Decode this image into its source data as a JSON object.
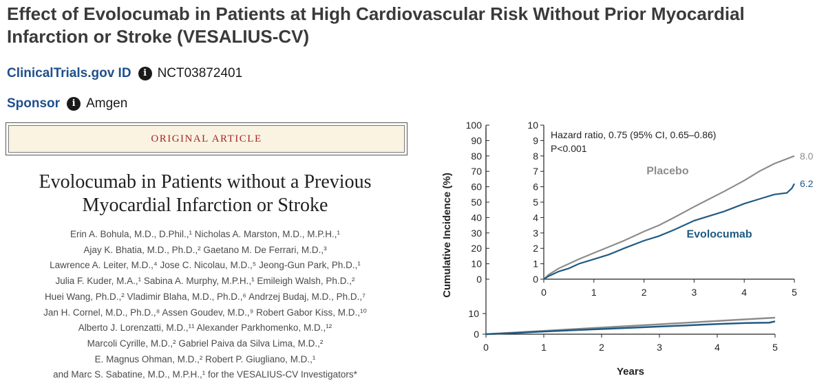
{
  "header": {
    "title": "Effect of Evolocumab in Patients at High Cardiovascular Risk Without Prior Myocardial Infarction or Stroke (VESALIUS-CV)"
  },
  "trial": {
    "label": "ClinicalTrials.gov ID",
    "value": "NCT03872401",
    "icon": "info-icon"
  },
  "sponsor": {
    "label": "Sponsor",
    "value": "Amgen",
    "icon": "info-icon"
  },
  "article": {
    "type_label": "ORIGINAL ARTICLE",
    "title_lines": [
      "Evolocumab in Patients without a Previous",
      "Myocardial Infarction or Stroke"
    ],
    "authors": [
      "Erin A. Bohula, M.D., D.Phil.,¹ Nicholas A. Marston, M.D., M.P.H.,¹",
      "Ajay K. Bhatia, M.D., Ph.D.,² Gaetano M. De Ferrari, M.D.,³",
      "Lawrence A. Leiter, M.D.,⁴ Jose C. Nicolau, M.D.,⁵ Jeong-Gun Park, Ph.D.,¹",
      "Julia F. Kuder, M.A.,¹ Sabina A. Murphy, M.P.H.,¹ Emileigh Walsh, Ph.D.,²",
      "Huei Wang, Ph.D.,² Vladimir Blaha, M.D., Ph.D.,⁶ Andrzej Budaj, M.D., Ph.D.,⁷",
      "Jan H. Cornel, M.D., Ph.D.,⁸ Assen Goudev, M.D.,⁹ Robert Gabor Kiss, M.D.,¹⁰",
      "Alberto J. Lorenzatti, M.D.,¹¹ Alexander Parkhomenko, M.D.,¹²",
      "Marcoli Cyrille, M.D.,² Gabriel Paiva da Silva Lima, M.D.,²",
      "E. Magnus Ohman, M.D.,² Robert P. Giugliano, M.D.,¹",
      "and Marc S. Sabatine, M.D., M.P.H.,¹ for the VESALIUS-CV Investigators*"
    ]
  },
  "chart_data": [
    {
      "type": "line",
      "panel": "full",
      "xlabel": "Years",
      "ylabel": "Cumulative Incidence (%)",
      "xlim": [
        0,
        5
      ],
      "ylim": [
        0,
        100
      ],
      "xticks": [
        "0",
        "1",
        "2",
        "3",
        "4",
        "5"
      ],
      "yticks": [
        "0",
        "10"
      ],
      "series": [
        {
          "name": "Placebo",
          "color": "#8c8c8c",
          "x": [
            0,
            0.5,
            1,
            1.5,
            2,
            2.5,
            3,
            3.5,
            4,
            4.5,
            5
          ],
          "y": [
            0,
            0.8,
            1.6,
            2.4,
            3.2,
            4.0,
            4.8,
            5.6,
            6.4,
            7.2,
            8.0
          ]
        },
        {
          "name": "Evolocumab",
          "color": "#1f5a84",
          "x": [
            0,
            0.5,
            1,
            1.5,
            2,
            2.5,
            3,
            3.5,
            4,
            4.5,
            4.9,
            5
          ],
          "y": [
            0,
            0.6,
            1.3,
            1.9,
            2.5,
            3.1,
            3.7,
            4.3,
            4.9,
            5.4,
            5.6,
            6.2
          ]
        }
      ]
    },
    {
      "type": "line",
      "panel": "inset",
      "xlim": [
        0,
        5
      ],
      "ylim": [
        0,
        10
      ],
      "xticks": [
        "0",
        "1",
        "2",
        "3",
        "4",
        "5"
      ],
      "yticks": [
        "0",
        "1",
        "2",
        "3",
        "4",
        "5",
        "6",
        "7",
        "8",
        "9",
        "10"
      ],
      "full_scale_yticks": [
        "0",
        "10",
        "20",
        "30",
        "40",
        "50",
        "60",
        "70",
        "80",
        "90",
        "100"
      ],
      "annotation": {
        "hazard_ratio": "Hazard ratio, 0.75 (95% CI, 0.65–0.86)",
        "p_value": "P<0.001"
      },
      "series": [
        {
          "name": "Placebo",
          "color": "#8c8c8c",
          "end_label": "8.0",
          "x": [
            0,
            0.1,
            0.3,
            0.5,
            0.7,
            1.0,
            1.3,
            1.6,
            2.0,
            2.3,
            2.6,
            3.0,
            3.3,
            3.6,
            4.0,
            4.3,
            4.6,
            5.0
          ],
          "y": [
            0,
            0.3,
            0.7,
            1.0,
            1.3,
            1.7,
            2.1,
            2.5,
            3.1,
            3.5,
            4.0,
            4.7,
            5.2,
            5.7,
            6.4,
            7.0,
            7.5,
            8.0
          ]
        },
        {
          "name": "Evolocumab",
          "color": "#1f5a84",
          "end_label": "6.2",
          "x": [
            0,
            0.1,
            0.3,
            0.5,
            0.7,
            1.0,
            1.3,
            1.6,
            2.0,
            2.3,
            2.6,
            3.0,
            3.3,
            3.6,
            4.0,
            4.3,
            4.6,
            4.85,
            4.95,
            5.0
          ],
          "y": [
            0,
            0.2,
            0.5,
            0.7,
            1.0,
            1.3,
            1.6,
            2.0,
            2.5,
            2.8,
            3.2,
            3.8,
            4.1,
            4.4,
            4.9,
            5.2,
            5.5,
            5.6,
            5.9,
            6.2
          ]
        }
      ]
    }
  ]
}
